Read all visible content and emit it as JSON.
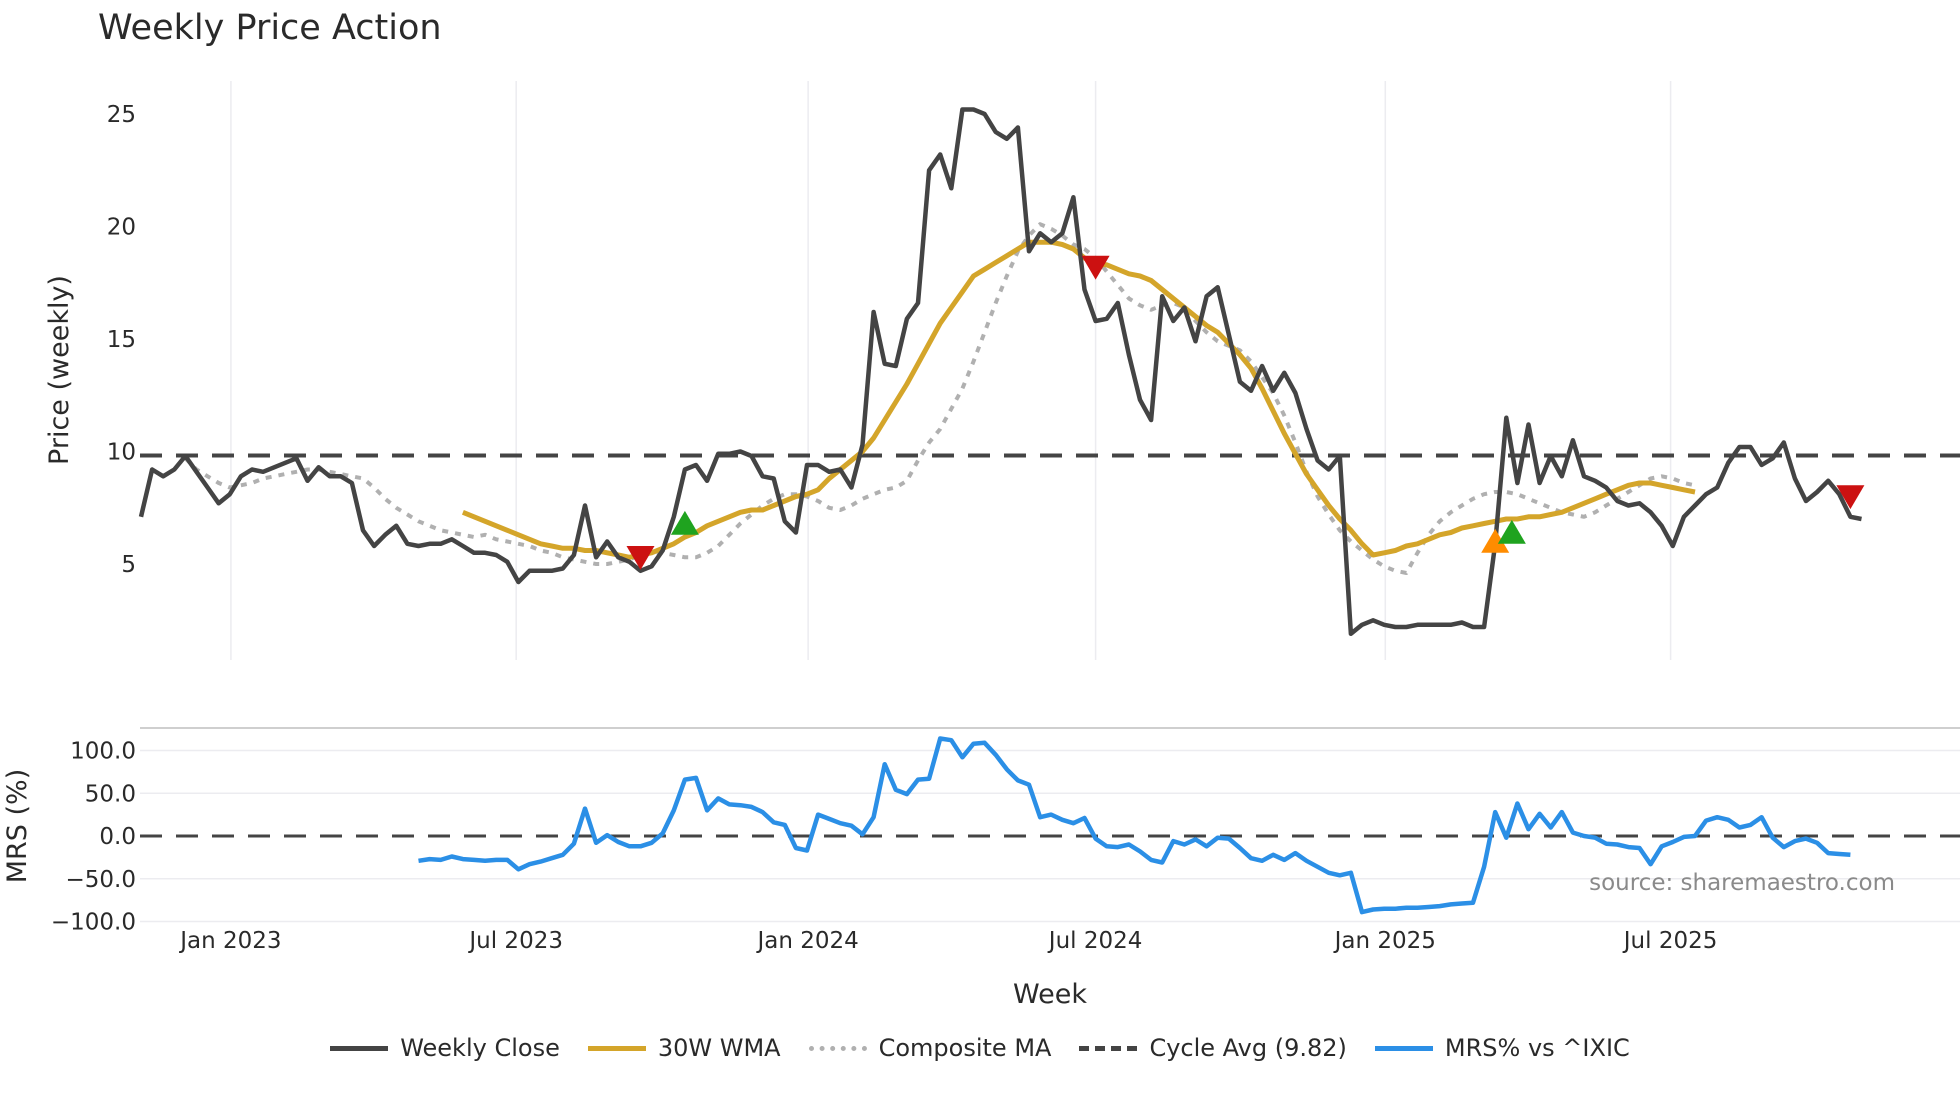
{
  "title": "Weekly Price Action",
  "source": "source: sharemaestro.com",
  "chart_data": [
    {
      "type": "line",
      "title": "Weekly Price Action",
      "xlabel": "Week",
      "ylabel": "Price (weekly)",
      "yticks": [
        5,
        10,
        15,
        20,
        25
      ],
      "ylim": [
        0.8,
        27.5
      ],
      "x_tick_labels": [
        "Jan 2023",
        "Jul 2023",
        "Jan 2024",
        "Jul 2024",
        "Jan 2025",
        "Jul 2025"
      ],
      "x_tick_week_index": [
        8.1,
        33.8,
        60.1,
        86.0,
        112.1,
        137.8
      ],
      "grid": true,
      "cycle_avg": 9.82,
      "series": [
        {
          "name": "Weekly Close",
          "color": "#444444",
          "start_index": 0,
          "values": [
            7.1,
            9.2,
            8.9,
            9.2,
            9.8,
            9.1,
            8.4,
            7.7,
            8.1,
            8.9,
            9.2,
            9.1,
            9.3,
            9.5,
            9.7,
            8.7,
            9.3,
            8.9,
            8.9,
            8.6,
            6.5,
            5.8,
            6.3,
            6.7,
            5.9,
            5.8,
            5.9,
            5.9,
            6.1,
            5.8,
            5.5,
            5.5,
            5.4,
            5.1,
            4.2,
            4.7,
            4.7,
            4.7,
            4.8,
            5.4,
            7.6,
            5.3,
            6.0,
            5.3,
            5.1,
            4.7,
            4.9,
            5.6,
            7.1,
            9.2,
            9.4,
            8.7,
            9.9,
            9.9,
            10.0,
            9.8,
            8.9,
            8.8,
            6.9,
            6.4,
            9.4,
            9.4,
            9.1,
            9.2,
            8.4,
            10.3,
            16.2,
            13.9,
            13.8,
            15.9,
            16.6,
            22.5,
            23.2,
            21.7,
            25.2,
            25.2,
            25.0,
            24.2,
            23.9,
            24.4,
            18.9,
            19.7,
            19.3,
            19.7,
            21.3,
            17.2,
            15.8,
            15.9,
            16.6,
            14.3,
            12.3,
            11.4,
            16.9,
            15.8,
            16.4,
            14.9,
            16.9,
            17.3,
            15.2,
            13.1,
            12.7,
            13.8,
            12.7,
            13.5,
            12.6,
            11.0,
            9.6,
            9.2,
            9.8,
            1.9,
            2.3,
            2.5,
            2.3,
            2.2,
            2.2,
            2.3,
            2.3,
            2.3,
            2.3,
            2.4,
            2.2,
            2.2,
            5.9,
            11.5,
            8.6,
            11.2,
            8.6,
            9.8,
            8.9,
            10.5,
            8.9,
            8.7,
            8.4,
            7.8,
            7.6,
            7.7,
            7.3,
            6.7,
            5.8,
            7.1,
            7.6,
            8.1,
            8.4,
            9.5,
            10.2,
            10.2,
            9.4,
            9.7,
            10.4,
            8.8,
            7.8,
            8.2,
            8.7,
            8.1,
            7.1,
            7.0
          ]
        },
        {
          "name": "30W WMA",
          "color": "#d4a52a",
          "start_index": 29,
          "values": [
            7.3,
            7.1,
            6.9,
            6.7,
            6.5,
            6.3,
            6.1,
            5.9,
            5.8,
            5.7,
            5.7,
            5.6,
            5.6,
            5.5,
            5.4,
            5.3,
            5.4,
            5.5,
            5.7,
            5.9,
            6.2,
            6.4,
            6.7,
            6.9,
            7.1,
            7.3,
            7.4,
            7.4,
            7.6,
            7.8,
            8.0,
            8.1,
            8.3,
            8.8,
            9.2,
            9.6,
            10.0,
            10.6,
            11.4,
            12.2,
            13.0,
            13.9,
            14.8,
            15.7,
            16.4,
            17.1,
            17.8,
            18.1,
            18.4,
            18.7,
            19.0,
            19.3,
            19.3,
            19.3,
            19.2,
            19.0,
            18.6,
            18.3,
            18.3,
            18.1,
            17.9,
            17.8,
            17.6,
            17.2,
            16.8,
            16.4,
            16.0,
            15.6,
            15.3,
            14.8,
            14.3,
            13.7,
            12.8,
            11.8,
            10.8,
            9.9,
            9.0,
            8.3,
            7.6,
            7.0,
            6.5,
            5.9,
            5.4,
            5.5,
            5.6,
            5.8,
            5.9,
            6.1,
            6.3,
            6.4,
            6.6,
            6.7,
            6.8,
            6.9,
            7.0,
            7.0,
            7.1,
            7.1,
            7.2,
            7.3,
            7.5,
            7.7,
            7.9,
            8.1,
            8.3,
            8.5,
            8.6,
            8.6,
            8.5,
            8.4,
            8.3,
            8.2
          ]
        },
        {
          "name": "Composite MA",
          "color": "#b0b0b0",
          "start_index": 4,
          "values": [
            9.7,
            9.2,
            8.9,
            8.6,
            8.4,
            8.5,
            8.6,
            8.8,
            8.9,
            9.0,
            9.1,
            9.2,
            9.2,
            9.1,
            9.0,
            8.9,
            8.8,
            8.4,
            7.9,
            7.5,
            7.2,
            6.9,
            6.7,
            6.5,
            6.4,
            6.3,
            6.2,
            6.3,
            6.1,
            6.0,
            5.9,
            5.8,
            5.6,
            5.5,
            5.3,
            5.2,
            5.1,
            5.0,
            5.0,
            5.1,
            5.2,
            5.4,
            5.5,
            5.5,
            5.4,
            5.3,
            5.3,
            5.5,
            5.8,
            6.3,
            6.8,
            7.2,
            7.6,
            7.9,
            8.1,
            8.1,
            8.0,
            7.8,
            7.5,
            7.4,
            7.6,
            7.9,
            8.1,
            8.3,
            8.4,
            8.7,
            9.6,
            10.4,
            11.0,
            11.9,
            12.8,
            14.0,
            15.3,
            16.6,
            17.8,
            18.9,
            19.6,
            20.1,
            19.9,
            19.6,
            19.2,
            19.0,
            18.6,
            18.0,
            17.4,
            16.8,
            16.5,
            16.3,
            16.5,
            16.6,
            16.4,
            15.8,
            15.3,
            14.9,
            14.7,
            14.5,
            14.0,
            13.3,
            12.6,
            11.6,
            10.4,
            9.1,
            8.0,
            7.2,
            6.5,
            6.0,
            5.6,
            5.2,
            4.9,
            4.7,
            4.6,
            5.5,
            6.3,
            6.9,
            7.3,
            7.6,
            7.9,
            8.1,
            8.2,
            8.2,
            8.1,
            7.9,
            7.7,
            7.5,
            7.3,
            7.2,
            7.1,
            7.3,
            7.6,
            7.9,
            8.2,
            8.5,
            8.8,
            8.9,
            8.8,
            8.6,
            8.5
          ]
        },
        {
          "name": "Cycle Avg (9.82)",
          "color": "#444444",
          "constant": 9.82
        }
      ],
      "markers": [
        {
          "type": "sell",
          "shape": "triangle-down",
          "color": "#cc1111",
          "index": 45,
          "value": 5.3
        },
        {
          "type": "buy",
          "shape": "triangle-up",
          "color": "#1fa31f",
          "index": 49,
          "value": 6.8
        },
        {
          "type": "sell",
          "shape": "triangle-down",
          "color": "#cc1111",
          "index": 86,
          "value": 18.2
        },
        {
          "type": "buy",
          "shape": "triangle-up",
          "color": "#ff8c00",
          "index": 122,
          "value": 6.0
        },
        {
          "type": "buy",
          "shape": "triangle-up",
          "color": "#1fa31f",
          "index": 123.5,
          "value": 6.4
        },
        {
          "type": "sell",
          "shape": "triangle-down",
          "color": "#cc1111",
          "index": 154,
          "value": 8.0
        }
      ]
    },
    {
      "type": "line",
      "ylabel": "MRS (%)",
      "yticks": [
        -100.0,
        -50.0,
        0.0,
        50.0,
        100.0
      ],
      "ytick_labels": [
        "−100.0",
        "−50.0",
        "0.0",
        "50.0",
        "100.0"
      ],
      "ylim": [
        -105,
        127
      ],
      "zero_line": 0,
      "series": [
        {
          "name": "MRS% vs ^IXIC",
          "color": "#2b8fe6",
          "start_index": 25,
          "values": [
            -29,
            -27,
            -28,
            -24,
            -27,
            -28,
            -29,
            -28,
            -28,
            -39,
            -33,
            -30,
            -26,
            -22,
            -9,
            32,
            -8,
            1,
            -7,
            -12,
            -12,
            -8,
            3,
            30,
            66,
            68,
            30,
            44,
            37,
            36,
            34,
            28,
            16,
            13,
            -14,
            -17,
            25,
            20,
            15,
            12,
            2,
            22,
            84,
            54,
            49,
            66,
            67,
            114,
            112,
            92,
            108,
            109,
            95,
            78,
            65,
            60,
            22,
            25,
            19,
            15,
            21,
            -3,
            -12,
            -13,
            -10,
            -18,
            -28,
            -31,
            -6,
            -10,
            -4,
            -12,
            -2,
            -3,
            -14,
            -26,
            -29,
            -22,
            -28,
            -20,
            -29,
            -36,
            -43,
            -46,
            -43,
            -89,
            -86,
            -85,
            -85,
            -84,
            -84,
            -83,
            -82,
            -80,
            -79,
            -78,
            -36,
            28,
            -2,
            38,
            8,
            26,
            10,
            28,
            4,
            0,
            -2,
            -9,
            -10,
            -13,
            -14,
            -33,
            -12,
            -7,
            -1,
            0,
            18,
            22,
            19,
            10,
            13,
            22,
            -2,
            -13,
            -6,
            -3,
            -8,
            -20,
            -21,
            -22
          ]
        }
      ]
    }
  ],
  "axes": {
    "price_ylabel": "Price (weekly)",
    "mrs_ylabel": "MRS (%)",
    "xlabel": "Week"
  },
  "legend": [
    {
      "label": "Weekly Close",
      "color": "#444444",
      "style": "solid"
    },
    {
      "label": "30W WMA",
      "color": "#d4a52a",
      "style": "solid"
    },
    {
      "label": "Composite MA",
      "color": "#b0b0b0",
      "style": "dotted"
    },
    {
      "label": "Cycle Avg (9.82)",
      "color": "#444444",
      "style": "dashed"
    },
    {
      "label": "MRS% vs ^IXIC",
      "color": "#2b8fe6",
      "style": "solid"
    }
  ]
}
